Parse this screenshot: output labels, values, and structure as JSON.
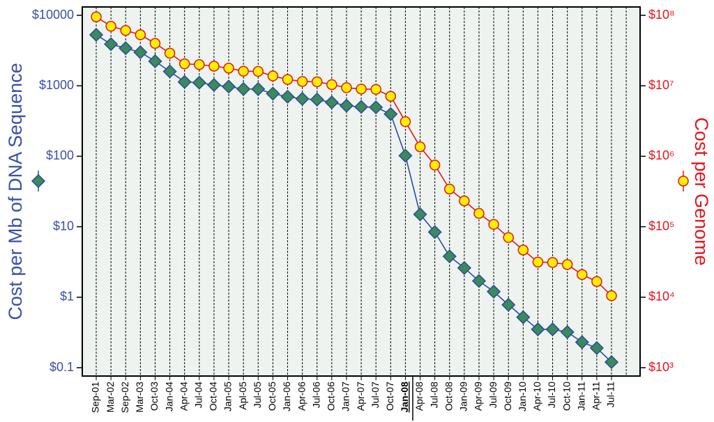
{
  "chart_data": {
    "type": "line",
    "categories": [
      "Sep-01",
      "Mar-02",
      "Sep-02",
      "Mar-03",
      "Oct-03",
      "Jan-04",
      "Apr-04",
      "Jul-04",
      "Oct-04",
      "Jan-05",
      "Apl-05",
      "Jul-05",
      "Oct-05",
      "Jan-06",
      "Apr-06",
      "Jul-06",
      "Oct-06",
      "Jan-07",
      "Apr-07",
      "Jul-07",
      "Oct-07",
      "Jan-08",
      "Apr-08",
      "Jul-08",
      "Oct-08",
      "Jan-09",
      "Apr-09",
      "Jul-09",
      "Oct-09",
      "Jan-10",
      "Apr-10",
      "Jul-10",
      "Oct-10",
      "Jan-11",
      "Apr-11",
      "Jul-11"
    ],
    "emphasized_category": 21,
    "series": [
      {
        "name": "Cost per Mb of DNA Sequence",
        "color": "#2a4aa0",
        "marker_fill": "#3a8a5a",
        "marker": "diamond",
        "axis": "y",
        "values": [
          5292,
          3899,
          3413,
          2986,
          2230,
          1598,
          1135,
          1107,
          1028,
          974,
          899,
          898,
          775,
          699,
          652,
          638,
          581,
          522,
          502,
          495,
          397,
          102,
          15.0,
          8.4,
          3.8,
          2.6,
          1.7,
          1.2,
          0.78,
          0.52,
          0.35,
          0.35,
          0.32,
          0.23,
          0.19,
          0.12
        ]
      },
      {
        "name": "Cost per Genome",
        "color": "#e3151b",
        "marker_fill": "#ffee00",
        "marker": "circle",
        "axis": "y2",
        "values": [
          95000000,
          70000000,
          61000000,
          53000000,
          40000000,
          29000000,
          20500000,
          20000000,
          19000000,
          17800000,
          16100000,
          16000000,
          13800000,
          12300000,
          11500000,
          11400000,
          10400000,
          9400000,
          9000000,
          8900000,
          7100000,
          3100000,
          1360000,
          750000,
          342502,
          232580,
          154714,
          108065,
          70333,
          46774,
          31512,
          31125,
          29092,
          20963,
          16712,
          10497
        ]
      }
    ],
    "ylog": true,
    "y2log": true,
    "ylim": [
      0.1,
      10000
    ],
    "yticks": [
      {
        "value": 0.1,
        "label": "$0.1"
      },
      {
        "value": 1,
        "label": "$1"
      },
      {
        "value": 10,
        "label": "$10"
      },
      {
        "value": 100,
        "label": "$100"
      },
      {
        "value": 1000,
        "label": "$1000"
      },
      {
        "value": 10000,
        "label": "$10000"
      }
    ],
    "y2lim": [
      1000,
      100000000
    ],
    "y2ticks": [
      {
        "value": 1000,
        "label": "$10³"
      },
      {
        "value": 10000,
        "label": "$10⁴"
      },
      {
        "value": 100000,
        "label": "$10⁵"
      },
      {
        "value": 1000000,
        "label": "$10⁶"
      },
      {
        "value": 10000000,
        "label": "$10⁷"
      },
      {
        "value": 100000000,
        "label": "$10⁸"
      }
    ],
    "grid": true
  }
}
